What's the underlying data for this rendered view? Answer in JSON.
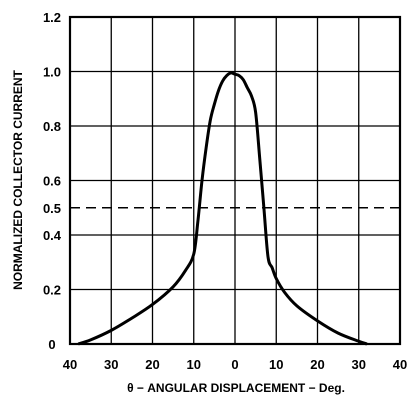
{
  "chart_data": {
    "type": "line",
    "title": "",
    "xlabel": "θ − ANGULAR DISPLACEMENT − Deg.",
    "ylabel": "NORMALIZED COLLECTOR CURRENT",
    "xlim": [
      -40,
      40
    ],
    "ylim": [
      0,
      1.2
    ],
    "x_ticks": [
      -40,
      -30,
      -20,
      -10,
      0,
      10,
      20,
      30,
      40
    ],
    "x_tick_labels": [
      "40",
      "30",
      "20",
      "10",
      "0",
      "10",
      "20",
      "30",
      "40"
    ],
    "y_ticks": [
      0,
      0.2,
      0.4,
      0.5,
      0.6,
      0.8,
      1.0,
      1.2
    ],
    "y_tick_labels": [
      "0",
      "0.2",
      "0.4",
      "0.5",
      "0.6",
      "0.8",
      "1.0",
      "1.2"
    ],
    "grid": true,
    "series": [
      {
        "style": "solid",
        "x": [
          -38,
          -35,
          -30,
          -25,
          -20,
          -15,
          -12,
          -10,
          -9,
          -8,
          -7,
          -6,
          -5,
          -4,
          -3,
          -2,
          -1,
          0,
          1,
          2,
          3,
          4,
          5,
          6,
          7,
          8,
          9,
          10,
          12,
          15,
          20,
          25,
          30,
          32
        ],
        "y": [
          0.0,
          0.015,
          0.05,
          0.095,
          0.145,
          0.21,
          0.27,
          0.33,
          0.45,
          0.6,
          0.72,
          0.82,
          0.88,
          0.93,
          0.965,
          0.985,
          0.995,
          0.99,
          0.985,
          0.97,
          0.94,
          0.91,
          0.85,
          0.68,
          0.5,
          0.32,
          0.28,
          0.24,
          0.19,
          0.14,
          0.085,
          0.04,
          0.01,
          0.0
        ]
      },
      {
        "style": "dashed",
        "x": [
          -40,
          40
        ],
        "y": [
          0.5,
          0.5
        ]
      }
    ]
  }
}
